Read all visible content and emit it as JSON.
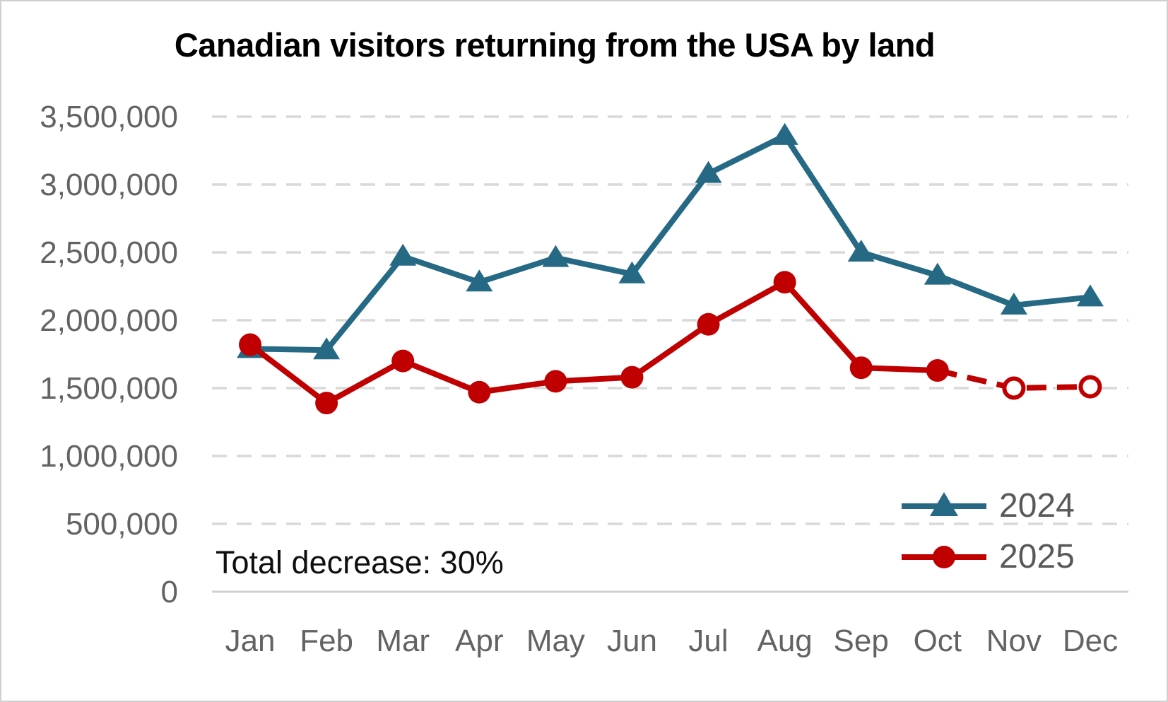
{
  "page": {
    "background": "#ffffff",
    "border_color": "#cfcfcf"
  },
  "chart_data": {
    "type": "line",
    "title": "Canadian visitors returning from the USA by land",
    "annotation": "Total decrease: 30%",
    "xlabel": "",
    "ylabel": "",
    "categories": [
      "Jan",
      "Feb",
      "Mar",
      "Apr",
      "May",
      "Jun",
      "Jul",
      "Aug",
      "Sep",
      "Oct",
      "Nov",
      "Dec"
    ],
    "ylim": [
      0,
      3500000
    ],
    "y_tick_step": 500000,
    "y_tick_labels": [
      "0",
      "500,000",
      "1,000,000",
      "1,500,000",
      "2,000,000",
      "2,500,000",
      "3,000,000",
      "3,500,000"
    ],
    "grid": true,
    "gridline_style": "dashed",
    "legend_position": "bottom-right",
    "series": [
      {
        "name": "2024",
        "color": "#266984",
        "marker": "triangle",
        "line_style": "solid",
        "values": [
          1790000,
          1780000,
          2470000,
          2280000,
          2460000,
          2340000,
          3080000,
          3360000,
          2500000,
          2330000,
          2110000,
          2170000
        ]
      },
      {
        "name": "2025",
        "color": "#c00000",
        "marker": "circle",
        "line_style": "solid",
        "projected_start_index": 10,
        "projected_note": "Nov and Dec shown with dashed line and hollow markers",
        "values": [
          1820000,
          1390000,
          1700000,
          1470000,
          1550000,
          1580000,
          1970000,
          2280000,
          1650000,
          1630000,
          1500000,
          1510000
        ]
      }
    ],
    "colors": {
      "grid": "#d9d9d9",
      "axis": "#d0d0d0",
      "tick_text": "#636363",
      "legend_text": "#595959",
      "title_text": "#000000",
      "annotation_text": "#0f0f0f"
    }
  }
}
